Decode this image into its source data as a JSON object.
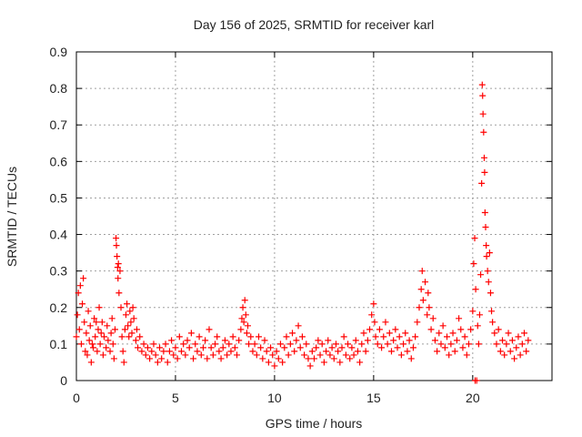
{
  "chart_data": {
    "type": "scatter",
    "title": "Day 156 of 2025, SRMTID for receiver karl",
    "xlabel": "GPS time / hours",
    "ylabel": "SRMTID / TECUs",
    "xlim": [
      0,
      24
    ],
    "ylim": [
      0,
      0.9
    ],
    "x_ticks": [
      0,
      5,
      10,
      15,
      20
    ],
    "x_tick_labels": [
      "0",
      "5",
      "10",
      "15",
      "20"
    ],
    "y_ticks": [
      0,
      0.1,
      0.2,
      0.3,
      0.4,
      0.5,
      0.6,
      0.7,
      0.8,
      0.9
    ],
    "y_tick_labels": [
      "0",
      "0.1",
      "0.2",
      "0.3",
      "0.4",
      "0.5",
      "0.6",
      "0.7",
      "0.8",
      "0.9"
    ],
    "grid": true,
    "marker": "+",
    "color": "#ff0000",
    "series": [
      {
        "name": "SRMTID",
        "points": [
          [
            0.0,
            0.12
          ],
          [
            0.05,
            0.18
          ],
          [
            0.1,
            0.24
          ],
          [
            0.15,
            0.14
          ],
          [
            0.2,
            0.26
          ],
          [
            0.25,
            0.1
          ],
          [
            0.3,
            0.21
          ],
          [
            0.35,
            0.28
          ],
          [
            0.4,
            0.16
          ],
          [
            0.45,
            0.08
          ],
          [
            0.5,
            0.13
          ],
          [
            0.55,
            0.07
          ],
          [
            0.6,
            0.19
          ],
          [
            0.65,
            0.11
          ],
          [
            0.7,
            0.15
          ],
          [
            0.75,
            0.05
          ],
          [
            0.8,
            0.1
          ],
          [
            0.85,
            0.09
          ],
          [
            0.9,
            0.17
          ],
          [
            0.95,
            0.12
          ],
          [
            1.0,
            0.16
          ],
          [
            1.05,
            0.08
          ],
          [
            1.1,
            0.14
          ],
          [
            1.15,
            0.2
          ],
          [
            1.2,
            0.1
          ],
          [
            1.25,
            0.13
          ],
          [
            1.3,
            0.16
          ],
          [
            1.35,
            0.07
          ],
          [
            1.4,
            0.12
          ],
          [
            1.5,
            0.09
          ],
          [
            1.55,
            0.15
          ],
          [
            1.6,
            0.11
          ],
          [
            1.7,
            0.08
          ],
          [
            1.75,
            0.13
          ],
          [
            1.8,
            0.17
          ],
          [
            1.85,
            0.1
          ],
          [
            1.9,
            0.06
          ],
          [
            1.95,
            0.14
          ],
          [
            2.0,
            0.39
          ],
          [
            2.02,
            0.37
          ],
          [
            2.05,
            0.34
          ],
          [
            2.08,
            0.31
          ],
          [
            2.1,
            0.28
          ],
          [
            2.12,
            0.32
          ],
          [
            2.15,
            0.24
          ],
          [
            2.2,
            0.3
          ],
          [
            2.25,
            0.2
          ],
          [
            2.3,
            0.12
          ],
          [
            2.35,
            0.08
          ],
          [
            2.4,
            0.05
          ],
          [
            2.45,
            0.14
          ],
          [
            2.5,
            0.18
          ],
          [
            2.55,
            0.21
          ],
          [
            2.6,
            0.15
          ],
          [
            2.65,
            0.12
          ],
          [
            2.7,
            0.19
          ],
          [
            2.75,
            0.16
          ],
          [
            2.8,
            0.13
          ],
          [
            2.85,
            0.2
          ],
          [
            2.9,
            0.17
          ],
          [
            3.0,
            0.11
          ],
          [
            3.05,
            0.14
          ],
          [
            3.1,
            0.09
          ],
          [
            3.2,
            0.12
          ],
          [
            3.3,
            0.08
          ],
          [
            3.4,
            0.1
          ],
          [
            3.5,
            0.07
          ],
          [
            3.6,
            0.09
          ],
          [
            3.7,
            0.06
          ],
          [
            3.8,
            0.08
          ],
          [
            3.9,
            0.1
          ],
          [
            4.0,
            0.07
          ],
          [
            4.1,
            0.05
          ],
          [
            4.2,
            0.09
          ],
          [
            4.3,
            0.06
          ],
          [
            4.4,
            0.08
          ],
          [
            4.5,
            0.1
          ],
          [
            4.6,
            0.05
          ],
          [
            4.7,
            0.08
          ],
          [
            4.8,
            0.11
          ],
          [
            4.9,
            0.07
          ],
          [
            5.0,
            0.09
          ],
          [
            5.1,
            0.06
          ],
          [
            5.2,
            0.12
          ],
          [
            5.3,
            0.08
          ],
          [
            5.4,
            0.1
          ],
          [
            5.5,
            0.07
          ],
          [
            5.6,
            0.11
          ],
          [
            5.7,
            0.09
          ],
          [
            5.8,
            0.13
          ],
          [
            5.9,
            0.06
          ],
          [
            6.0,
            0.1
          ],
          [
            6.1,
            0.08
          ],
          [
            6.2,
            0.12
          ],
          [
            6.3,
            0.07
          ],
          [
            6.4,
            0.09
          ],
          [
            6.5,
            0.11
          ],
          [
            6.6,
            0.06
          ],
          [
            6.7,
            0.14
          ],
          [
            6.8,
            0.09
          ],
          [
            6.9,
            0.07
          ],
          [
            7.0,
            0.1
          ],
          [
            7.1,
            0.12
          ],
          [
            7.2,
            0.08
          ],
          [
            7.3,
            0.06
          ],
          [
            7.4,
            0.09
          ],
          [
            7.5,
            0.11
          ],
          [
            7.6,
            0.07
          ],
          [
            7.7,
            0.1
          ],
          [
            7.8,
            0.08
          ],
          [
            7.9,
            0.12
          ],
          [
            8.0,
            0.09
          ],
          [
            8.1,
            0.07
          ],
          [
            8.2,
            0.11
          ],
          [
            8.3,
            0.14
          ],
          [
            8.35,
            0.17
          ],
          [
            8.4,
            0.2
          ],
          [
            8.45,
            0.16
          ],
          [
            8.5,
            0.22
          ],
          [
            8.55,
            0.18
          ],
          [
            8.6,
            0.13
          ],
          [
            8.65,
            0.15
          ],
          [
            8.7,
            0.1
          ],
          [
            8.8,
            0.12
          ],
          [
            8.9,
            0.08
          ],
          [
            9.0,
            0.1
          ],
          [
            9.1,
            0.07
          ],
          [
            9.2,
            0.12
          ],
          [
            9.3,
            0.09
          ],
          [
            9.4,
            0.06
          ],
          [
            9.5,
            0.11
          ],
          [
            9.6,
            0.08
          ],
          [
            9.7,
            0.05
          ],
          [
            9.8,
            0.09
          ],
          [
            9.9,
            0.07
          ],
          [
            10.0,
            0.04
          ],
          [
            10.1,
            0.08
          ],
          [
            10.2,
            0.06
          ],
          [
            10.3,
            0.1
          ],
          [
            10.4,
            0.05
          ],
          [
            10.5,
            0.09
          ],
          [
            10.6,
            0.12
          ],
          [
            10.7,
            0.07
          ],
          [
            10.8,
            0.1
          ],
          [
            10.9,
            0.13
          ],
          [
            11.0,
            0.08
          ],
          [
            11.1,
            0.11
          ],
          [
            11.2,
            0.15
          ],
          [
            11.3,
            0.09
          ],
          [
            11.4,
            0.12
          ],
          [
            11.5,
            0.07
          ],
          [
            11.6,
            0.1
          ],
          [
            11.7,
            0.06
          ],
          [
            11.8,
            0.04
          ],
          [
            11.9,
            0.08
          ],
          [
            12.0,
            0.06
          ],
          [
            12.1,
            0.09
          ],
          [
            12.2,
            0.11
          ],
          [
            12.3,
            0.07
          ],
          [
            12.4,
            0.1
          ],
          [
            12.5,
            0.05
          ],
          [
            12.6,
            0.08
          ],
          [
            12.7,
            0.11
          ],
          [
            12.8,
            0.07
          ],
          [
            12.9,
            0.09
          ],
          [
            13.0,
            0.06
          ],
          [
            13.1,
            0.1
          ],
          [
            13.2,
            0.08
          ],
          [
            13.3,
            0.05
          ],
          [
            13.4,
            0.09
          ],
          [
            13.5,
            0.12
          ],
          [
            13.6,
            0.07
          ],
          [
            13.7,
            0.1
          ],
          [
            13.8,
            0.06
          ],
          [
            13.9,
            0.09
          ],
          [
            14.0,
            0.07
          ],
          [
            14.1,
            0.11
          ],
          [
            14.2,
            0.08
          ],
          [
            14.3,
            0.05
          ],
          [
            14.4,
            0.1
          ],
          [
            14.5,
            0.13
          ],
          [
            14.6,
            0.08
          ],
          [
            14.7,
            0.11
          ],
          [
            14.8,
            0.14
          ],
          [
            14.9,
            0.18
          ],
          [
            15.0,
            0.21
          ],
          [
            15.05,
            0.16
          ],
          [
            15.1,
            0.12
          ],
          [
            15.2,
            0.1
          ],
          [
            15.3,
            0.14
          ],
          [
            15.4,
            0.09
          ],
          [
            15.5,
            0.12
          ],
          [
            15.6,
            0.16
          ],
          [
            15.7,
            0.1
          ],
          [
            15.8,
            0.13
          ],
          [
            15.9,
            0.08
          ],
          [
            16.0,
            0.11
          ],
          [
            16.1,
            0.14
          ],
          [
            16.2,
            0.09
          ],
          [
            16.3,
            0.12
          ],
          [
            16.4,
            0.07
          ],
          [
            16.5,
            0.1
          ],
          [
            16.6,
            0.13
          ],
          [
            16.7,
            0.08
          ],
          [
            16.8,
            0.11
          ],
          [
            16.9,
            0.06
          ],
          [
            17.0,
            0.09
          ],
          [
            17.1,
            0.12
          ],
          [
            17.2,
            0.16
          ],
          [
            17.3,
            0.2
          ],
          [
            17.4,
            0.25
          ],
          [
            17.45,
            0.3
          ],
          [
            17.5,
            0.22
          ],
          [
            17.6,
            0.27
          ],
          [
            17.7,
            0.18
          ],
          [
            17.75,
            0.24
          ],
          [
            17.8,
            0.2
          ],
          [
            17.9,
            0.14
          ],
          [
            18.0,
            0.17
          ],
          [
            18.1,
            0.11
          ],
          [
            18.2,
            0.08
          ],
          [
            18.3,
            0.13
          ],
          [
            18.4,
            0.1
          ],
          [
            18.5,
            0.15
          ],
          [
            18.6,
            0.09
          ],
          [
            18.7,
            0.12
          ],
          [
            18.8,
            0.07
          ],
          [
            18.9,
            0.1
          ],
          [
            19.0,
            0.13
          ],
          [
            19.1,
            0.08
          ],
          [
            19.2,
            0.11
          ],
          [
            19.3,
            0.17
          ],
          [
            19.4,
            0.14
          ],
          [
            19.5,
            0.09
          ],
          [
            19.6,
            0.12
          ],
          [
            19.7,
            0.07
          ],
          [
            19.8,
            0.1
          ],
          [
            19.9,
            0.14
          ],
          [
            20.0,
            0.19
          ],
          [
            20.05,
            0.32
          ],
          [
            20.1,
            0.39
          ],
          [
            20.12,
            0.0
          ],
          [
            20.15,
            0.25
          ],
          [
            20.2,
            0.0
          ],
          [
            20.25,
            0.15
          ],
          [
            20.3,
            0.1
          ],
          [
            20.35,
            0.18
          ],
          [
            20.4,
            0.29
          ],
          [
            20.45,
            0.54
          ],
          [
            20.48,
            0.81
          ],
          [
            20.5,
            0.78
          ],
          [
            20.52,
            0.73
          ],
          [
            20.55,
            0.68
          ],
          [
            20.58,
            0.61
          ],
          [
            20.6,
            0.57
          ],
          [
            20.62,
            0.46
          ],
          [
            20.65,
            0.42
          ],
          [
            20.68,
            0.37
          ],
          [
            20.7,
            0.34
          ],
          [
            20.75,
            0.3
          ],
          [
            20.8,
            0.27
          ],
          [
            20.85,
            0.35
          ],
          [
            20.9,
            0.24
          ],
          [
            20.95,
            0.19
          ],
          [
            21.0,
            0.16
          ],
          [
            21.1,
            0.13
          ],
          [
            21.2,
            0.1
          ],
          [
            21.3,
            0.14
          ],
          [
            21.4,
            0.08
          ],
          [
            21.5,
            0.11
          ],
          [
            21.6,
            0.07
          ],
          [
            21.7,
            0.1
          ],
          [
            21.8,
            0.13
          ],
          [
            21.9,
            0.08
          ],
          [
            22.0,
            0.11
          ],
          [
            22.1,
            0.06
          ],
          [
            22.2,
            0.09
          ],
          [
            22.3,
            0.12
          ],
          [
            22.4,
            0.07
          ],
          [
            22.5,
            0.1
          ],
          [
            22.6,
            0.13
          ],
          [
            22.7,
            0.08
          ],
          [
            22.8,
            0.11
          ]
        ]
      }
    ]
  }
}
